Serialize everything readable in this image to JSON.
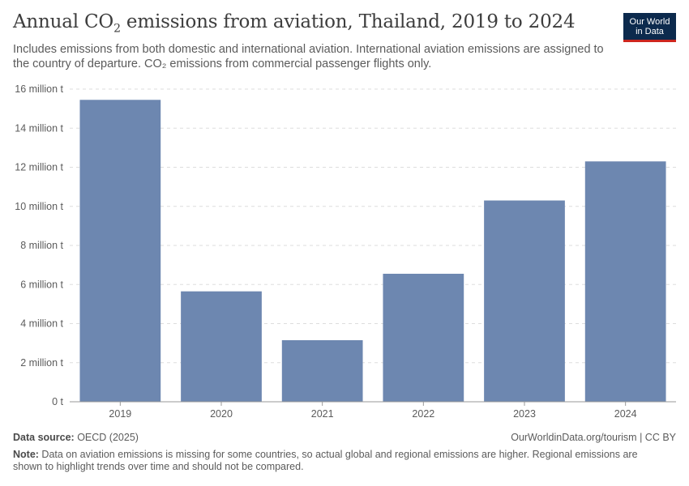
{
  "header": {
    "title_prefix": "Annual CO",
    "title_sub": "2",
    "title_suffix": " emissions from aviation, Thailand, 2019 to 2024",
    "subtitle": "Includes emissions from both domestic and international aviation. International aviation emissions are assigned to the country of departure. CO₂ emissions from commercial passenger flights only."
  },
  "logo": {
    "line1": "Our World",
    "line2": "in Data"
  },
  "chart_data": {
    "type": "bar",
    "title": "Annual CO₂ emissions from aviation, Thailand, 2019 to 2024",
    "xlabel": "",
    "ylabel": "",
    "categories": [
      "2019",
      "2020",
      "2021",
      "2022",
      "2023",
      "2024"
    ],
    "values": [
      15.45,
      5.65,
      3.15,
      6.55,
      10.3,
      12.3
    ],
    "unit": "million t",
    "ylim": [
      0,
      16
    ],
    "yticks": [
      0,
      2,
      4,
      6,
      8,
      10,
      12,
      14,
      16
    ],
    "ytick_labels": [
      "0 t",
      "2 million t",
      "4 million t",
      "6 million t",
      "8 million t",
      "10 million t",
      "12 million t",
      "14 million t",
      "16 million t"
    ],
    "grid": true,
    "bar_color": "#6d87b0"
  },
  "footer": {
    "source_label": "Data source:",
    "source_value": " OECD (2025)",
    "url": "OurWorldinData.org/tourism | CC BY",
    "note_label": "Note:",
    "note_text": " Data on aviation emissions is missing for some countries, so actual global and regional emissions are higher. Regional emissions are shown to highlight trends over time and should not be compared."
  }
}
